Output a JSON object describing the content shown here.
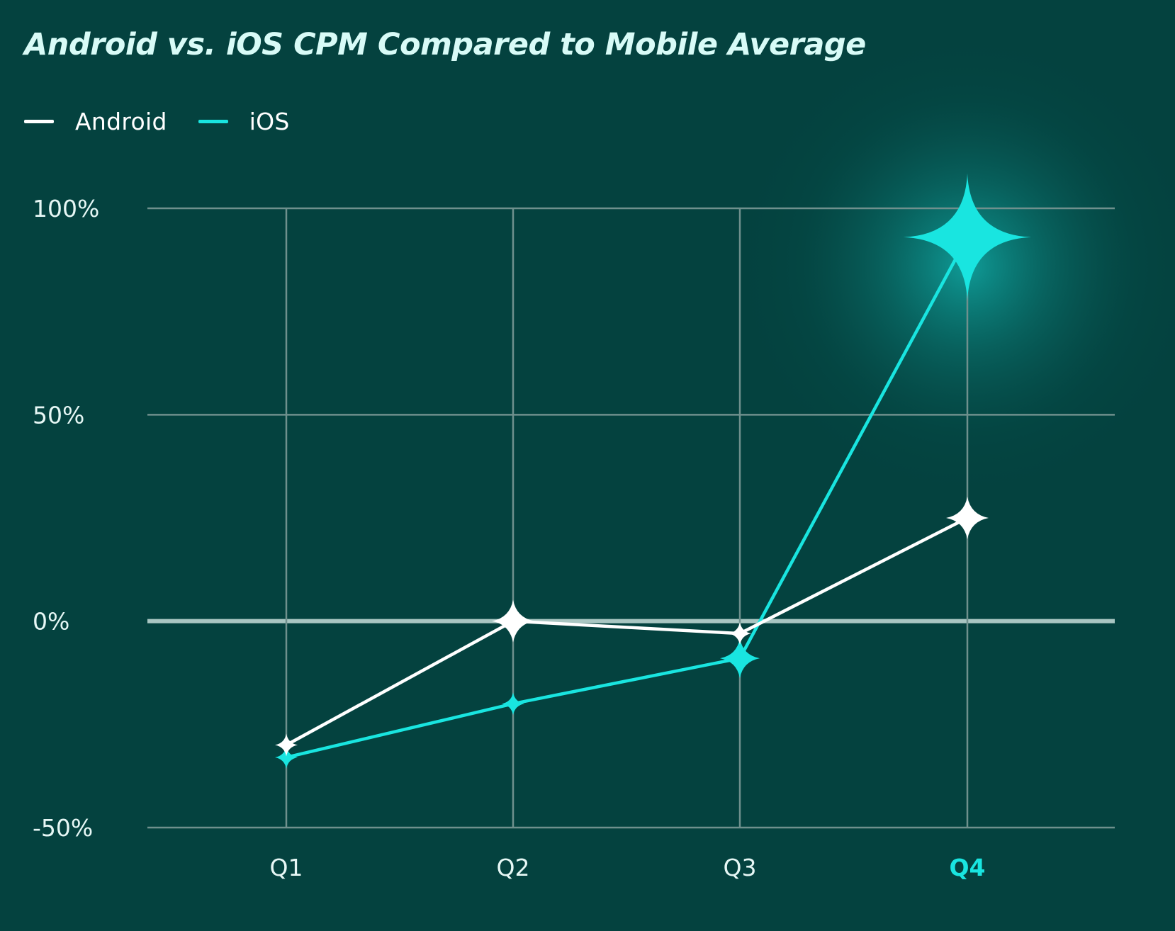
{
  "title": "Android vs. iOS CPM Compared to Mobile Average",
  "legend": [
    {
      "label": "Android",
      "color": "#ffffff"
    },
    {
      "label": "iOS",
      "color": "#19e5e0"
    }
  ],
  "colors": {
    "background": "#04423f",
    "grid": "#6f908d",
    "zero_line": "#a9c6c2",
    "android": "#ffffff",
    "ios": "#19e5e0",
    "highlight": "#19e5e0"
  },
  "chart_data": {
    "type": "line",
    "title": "Android vs. iOS CPM Compared to Mobile Average",
    "categories": [
      "Q1",
      "Q2",
      "Q3",
      "Q4"
    ],
    "highlighted_category": "Q4",
    "series": [
      {
        "name": "Android",
        "values": [
          -30,
          0,
          -3,
          25
        ]
      },
      {
        "name": "iOS",
        "values": [
          -33,
          -20,
          -9,
          93
        ]
      }
    ],
    "ylim": [
      -50,
      100
    ],
    "yticks": [
      -50,
      0,
      50,
      100
    ],
    "ytick_labels": [
      "-50%",
      "0%",
      "50%",
      "100%"
    ],
    "xlabel": "",
    "ylabel": "",
    "grid": true,
    "legend_position": "top-left"
  }
}
